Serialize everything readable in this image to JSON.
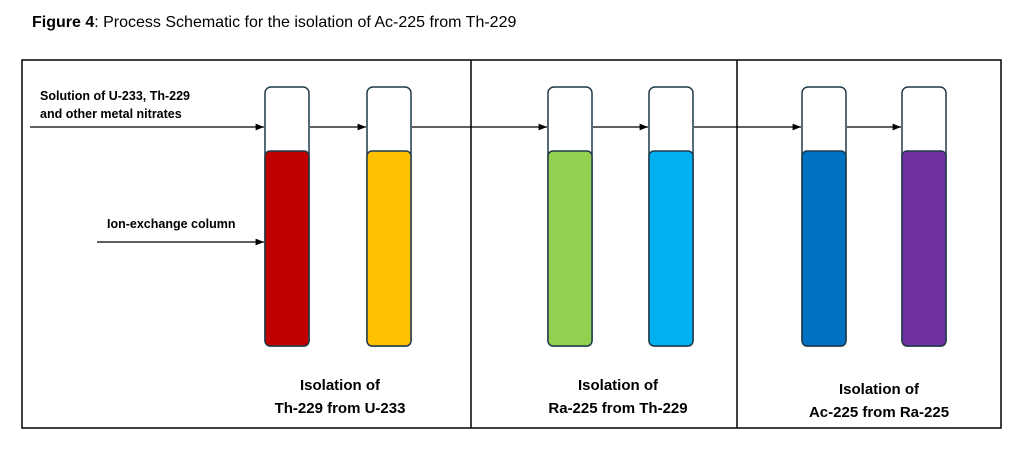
{
  "figure": {
    "label": "Figure 4",
    "caption": ": Process Schematic for the isolation of Ac-225 from Th-229"
  },
  "inputs": [
    {
      "lines": [
        "Solution of U-233, Th-229",
        "and other metal nitrates"
      ]
    },
    {
      "lines": [
        "Ion-exchange column"
      ]
    }
  ],
  "sections": [
    {
      "lines": [
        "Isolation of",
        "Th-229 from U-233"
      ]
    },
    {
      "lines": [
        "Isolation of",
        "Ra-225 from Th-229"
      ]
    },
    {
      "lines": [
        "Isolation of",
        "Ac-225 from Ra-225"
      ]
    }
  ]
}
